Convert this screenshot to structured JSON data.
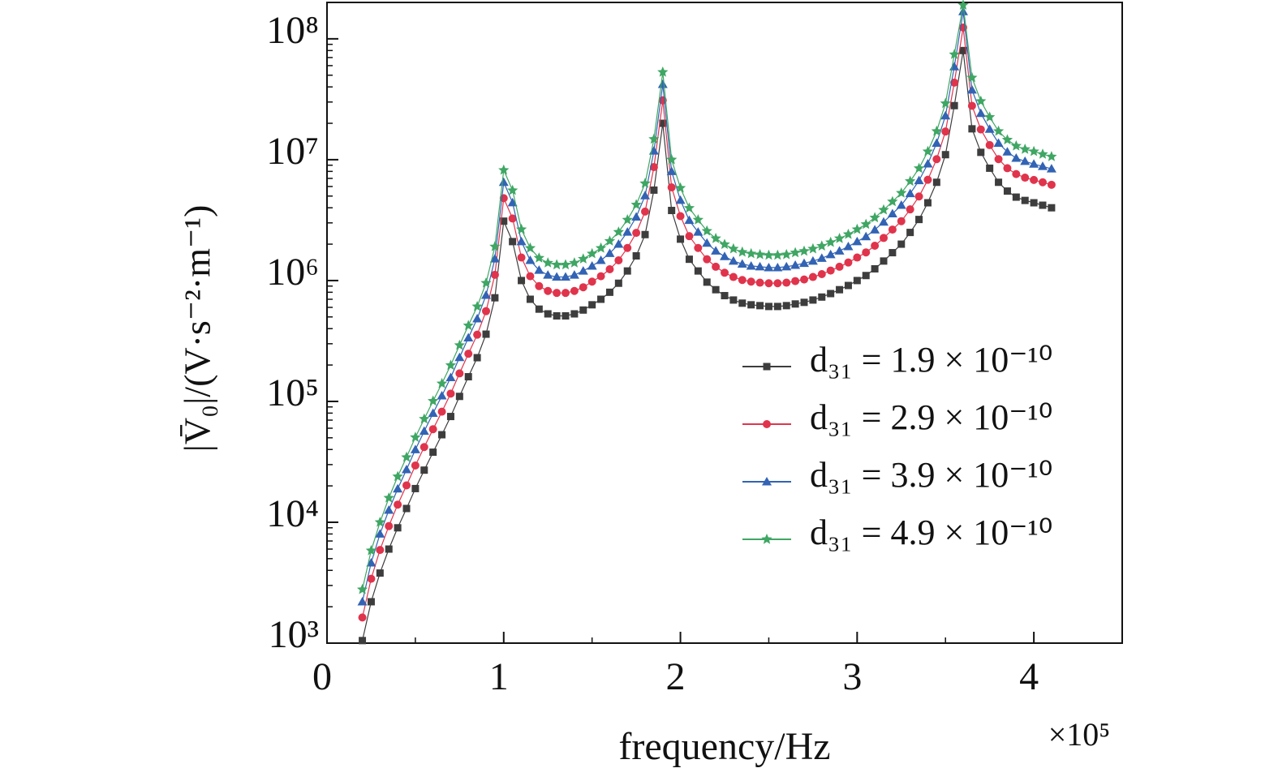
{
  "chart_data": {
    "type": "line",
    "xlabel": "frequency/Hz",
    "ylabel": "|V̄₀|/(V·s⁻²·m⁻¹)",
    "x_multiplier": "×10⁵",
    "x": [
      0.2,
      0.25,
      0.3,
      0.35,
      0.4,
      0.45,
      0.5,
      0.55,
      0.6,
      0.65,
      0.7,
      0.75,
      0.8,
      0.85,
      0.9,
      0.95,
      1.0,
      1.05,
      1.1,
      1.15,
      1.2,
      1.25,
      1.3,
      1.35,
      1.4,
      1.45,
      1.5,
      1.55,
      1.6,
      1.65,
      1.7,
      1.75,
      1.8,
      1.85,
      1.9,
      1.95,
      2.0,
      2.05,
      2.1,
      2.15,
      2.2,
      2.25,
      2.3,
      2.35,
      2.4,
      2.45,
      2.5,
      2.55,
      2.6,
      2.65,
      2.7,
      2.75,
      2.8,
      2.85,
      2.9,
      2.95,
      3.0,
      3.05,
      3.1,
      3.15,
      3.2,
      3.25,
      3.3,
      3.35,
      3.4,
      3.45,
      3.5,
      3.55,
      3.6,
      3.65,
      3.7,
      3.75,
      3.8,
      3.85,
      3.9,
      3.95,
      4.0,
      4.05,
      4.1
    ],
    "series": [
      {
        "name": "d₃₁ = 1.9 × 10⁻¹⁰",
        "color": "#3d3d3d",
        "marker": "square",
        "values": [
          1050,
          2200,
          3800,
          6000,
          9000,
          13000,
          19000,
          27000,
          38000,
          53000,
          75000,
          110000,
          160000,
          230000,
          360000,
          720000,
          3100000,
          2100000,
          1000000,
          700000,
          580000,
          530000,
          510000,
          510000,
          530000,
          570000,
          630000,
          700000,
          800000,
          950000,
          1200000,
          1600000,
          2400000,
          5600000,
          20000000,
          3800000,
          2200000,
          1500000,
          1200000,
          970000,
          840000,
          750000,
          690000,
          650000,
          630000,
          620000,
          610000,
          610000,
          620000,
          640000,
          660000,
          690000,
          730000,
          780000,
          840000,
          910000,
          1000000,
          1100000,
          1250000,
          1450000,
          1700000,
          2000000,
          2500000,
          3200000,
          4400000,
          6500000,
          11000000,
          28000000,
          80000000,
          18000000,
          11500000,
          8500000,
          6500000,
          5500000,
          4900000,
          4600000,
          4400000,
          4200000,
          4000000
        ]
      },
      {
        "name": "d₃₁ = 2.9 × 10⁻¹⁰",
        "color": "#e0344c",
        "marker": "circle",
        "values": [
          1630,
          3410,
          5900,
          9300,
          14000,
          20200,
          29500,
          41900,
          58900,
          82200,
          116000,
          170500,
          248000,
          356500,
          558000,
          1116000,
          4800000,
          3260000,
          1550000,
          1085000,
          899000,
          820000,
          790000,
          790000,
          820000,
          880000,
          980000,
          1085000,
          1240000,
          1470000,
          1860000,
          2480000,
          3720000,
          8680000,
          31000000,
          5900000,
          3410000,
          2330000,
          1860000,
          1500000,
          1300000,
          1160000,
          1070000,
          1010000,
          980000,
          960000,
          950000,
          950000,
          960000,
          990000,
          1020000,
          1070000,
          1130000,
          1210000,
          1300000,
          1410000,
          1550000,
          1710000,
          1940000,
          2250000,
          2640000,
          3100000,
          3880000,
          4960000,
          6820000,
          10100000,
          17100000,
          43400000,
          124000000,
          27900000,
          17800000,
          13200000,
          10100000,
          8500000,
          7600000,
          7100000,
          6800000,
          6500000,
          6200000
        ]
      },
      {
        "name": "d₃₁ = 3.9 × 10⁻¹⁰",
        "color": "#3263b4",
        "marker": "triangle",
        "values": [
          2200,
          4620,
          8000,
          12600,
          18900,
          27300,
          39900,
          56700,
          79800,
          111300,
          157500,
          231000,
          336000,
          483000,
          756000,
          1512000,
          6500000,
          4410000,
          2100000,
          1470000,
          1218000,
          1110000,
          1070000,
          1070000,
          1110000,
          1200000,
          1320000,
          1470000,
          1680000,
          2000000,
          2520000,
          3360000,
          5040000,
          11800000,
          42000000,
          8000000,
          4620000,
          3150000,
          2520000,
          2040000,
          1760000,
          1580000,
          1450000,
          1370000,
          1320000,
          1300000,
          1280000,
          1280000,
          1300000,
          1340000,
          1390000,
          1450000,
          1530000,
          1640000,
          1760000,
          1910000,
          2100000,
          2310000,
          2630000,
          3050000,
          3570000,
          4200000,
          5250000,
          6720000,
          9240000,
          13700000,
          23100000,
          58800000,
          168000000,
          37800000,
          24200000,
          17900000,
          13700000,
          11600000,
          10300000,
          9700000,
          9200000,
          8800000,
          8400000
        ]
      },
      {
        "name": "d₃₁ = 4.9 × 10⁻¹⁰",
        "color": "#3fa664",
        "marker": "star",
        "values": [
          2780,
          5830,
          10000,
          15900,
          23900,
          34500,
          50400,
          71600,
          100700,
          140500,
          199000,
          291500,
          424000,
          609500,
          954000,
          1908000,
          8200000,
          5570000,
          2650000,
          1855000,
          1537000,
          1400000,
          1350000,
          1350000,
          1400000,
          1510000,
          1670000,
          1855000,
          2120000,
          2520000,
          3180000,
          4240000,
          6360000,
          14800000,
          53000000,
          10000000,
          5830000,
          3980000,
          3180000,
          2570000,
          2230000,
          1990000,
          1830000,
          1720000,
          1670000,
          1640000,
          1620000,
          1620000,
          1640000,
          1700000,
          1750000,
          1830000,
          1930000,
          2070000,
          2230000,
          2410000,
          2650000,
          2920000,
          3310000,
          3840000,
          4500000,
          5300000,
          6630000,
          8480000,
          11700000,
          17200000,
          29200000,
          74200000,
          190000000,
          47700000,
          30500000,
          22500000,
          17200000,
          14600000,
          13000000,
          12200000,
          11700000,
          11100000,
          10600000
        ]
      }
    ],
    "xlim": [
      0,
      4.5
    ],
    "xticks": [
      0,
      1,
      2,
      3,
      4
    ],
    "ylim": [
      1000,
      200000000
    ],
    "log_y": true,
    "yticks": [
      {
        "value": 1000,
        "label": "10³"
      },
      {
        "value": 10000,
        "label": "10⁴"
      },
      {
        "value": 100000,
        "label": "10⁵"
      },
      {
        "value": 1000000,
        "label": "10⁶"
      },
      {
        "value": 10000000,
        "label": "10⁷"
      },
      {
        "value": 100000000,
        "label": "10⁸"
      }
    ],
    "minor_ticks": true,
    "legend": "lower right"
  }
}
